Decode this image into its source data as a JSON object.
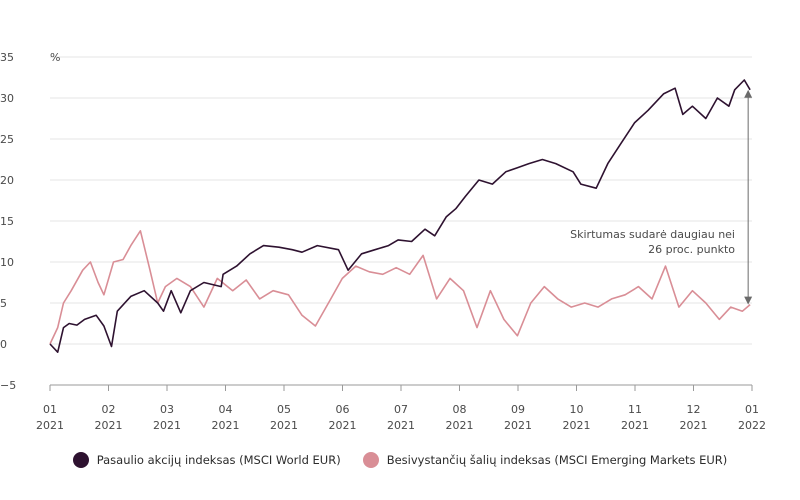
{
  "chart_data": {
    "type": "line",
    "unit_label": "%",
    "ylim": [
      -5,
      35
    ],
    "yticks": [
      "35",
      "30",
      "25",
      "20",
      "15",
      "10",
      "5",
      "0",
      "−5"
    ],
    "ytick_values": [
      35,
      30,
      25,
      20,
      15,
      10,
      5,
      0,
      -5
    ],
    "xlim": [
      "2021-01",
      "2022-01"
    ],
    "xticks": [
      {
        "month": "01",
        "year": "2021"
      },
      {
        "month": "02",
        "year": "2021"
      },
      {
        "month": "03",
        "year": "2021"
      },
      {
        "month": "04",
        "year": "2021"
      },
      {
        "month": "05",
        "year": "2021"
      },
      {
        "month": "06",
        "year": "2021"
      },
      {
        "month": "07",
        "year": "2021"
      },
      {
        "month": "08",
        "year": "2021"
      },
      {
        "month": "09",
        "year": "2021"
      },
      {
        "month": "10",
        "year": "2021"
      },
      {
        "month": "11",
        "year": "2021"
      },
      {
        "month": "12",
        "year": "2021"
      },
      {
        "month": "01",
        "year": "2022"
      }
    ],
    "grid": "horizontal",
    "legend_position": "bottom",
    "annotation": {
      "line1": "Skirtumas sudarė daugiau nei",
      "line2": "26 proc. punkto",
      "at": "2021-12-30",
      "from": 4.8,
      "to": 31.0
    },
    "series": [
      {
        "name": "Pasaulio akcijų indeksas (MSCI World EUR)",
        "color": "#2e1230",
        "x": [
          "2021-01-01",
          "2021-01-05",
          "2021-01-08",
          "2021-01-11",
          "2021-01-15",
          "2021-01-19",
          "2021-01-25",
          "2021-01-29",
          "2021-02-02",
          "2021-02-05",
          "2021-02-12",
          "2021-02-19",
          "2021-02-26",
          "2021-03-01",
          "2021-03-05",
          "2021-03-10",
          "2021-03-15",
          "2021-03-22",
          "2021-03-31",
          "2021-04-01",
          "2021-04-08",
          "2021-04-15",
          "2021-04-22",
          "2021-04-30",
          "2021-05-07",
          "2021-05-12",
          "2021-05-20",
          "2021-05-31",
          "2021-06-05",
          "2021-06-12",
          "2021-06-19",
          "2021-06-26",
          "2021-07-01",
          "2021-07-08",
          "2021-07-15",
          "2021-07-20",
          "2021-07-26",
          "2021-07-31",
          "2021-08-05",
          "2021-08-12",
          "2021-08-19",
          "2021-08-26",
          "2021-09-01",
          "2021-09-07",
          "2021-09-14",
          "2021-09-21",
          "2021-09-30",
          "2021-10-04",
          "2021-10-12",
          "2021-10-18",
          "2021-10-25",
          "2021-11-01",
          "2021-11-08",
          "2021-11-16",
          "2021-11-22",
          "2021-11-26",
          "2021-12-01",
          "2021-12-08",
          "2021-12-14",
          "2021-12-20",
          "2021-12-23",
          "2021-12-28",
          "2021-12-31"
        ],
        "y": [
          0.0,
          -1.0,
          2.0,
          2.5,
          2.3,
          3.0,
          3.5,
          2.2,
          -0.3,
          4.0,
          5.8,
          6.5,
          5.0,
          4.0,
          6.5,
          3.8,
          6.5,
          7.5,
          7.0,
          8.5,
          9.5,
          11.0,
          12.0,
          11.8,
          11.5,
          11.2,
          12.0,
          11.5,
          9.0,
          11.0,
          11.5,
          12.0,
          12.7,
          12.5,
          14.0,
          13.2,
          15.5,
          16.5,
          18.0,
          20.0,
          19.5,
          21.0,
          21.5,
          22.0,
          22.5,
          22.0,
          21.0,
          19.5,
          19.0,
          22.0,
          24.5,
          27.0,
          28.5,
          30.5,
          31.2,
          28.0,
          29.0,
          27.5,
          30.0,
          29.0,
          31.0,
          32.2,
          31.0
        ]
      },
      {
        "name": "Besivystančių šalių indeksas (MSCI Emerging Markets EUR)",
        "color": "#d98e96",
        "x": [
          "2021-01-01",
          "2021-01-05",
          "2021-01-08",
          "2021-01-12",
          "2021-01-18",
          "2021-01-22",
          "2021-01-26",
          "2021-01-29",
          "2021-02-03",
          "2021-02-08",
          "2021-02-12",
          "2021-02-17",
          "2021-02-22",
          "2021-02-26",
          "2021-03-02",
          "2021-03-08",
          "2021-03-15",
          "2021-03-22",
          "2021-03-29",
          "2021-04-06",
          "2021-04-13",
          "2021-04-20",
          "2021-04-27",
          "2021-05-05",
          "2021-05-12",
          "2021-05-19",
          "2021-05-27",
          "2021-06-02",
          "2021-06-09",
          "2021-06-16",
          "2021-06-23",
          "2021-06-30",
          "2021-07-07",
          "2021-07-14",
          "2021-07-21",
          "2021-07-28",
          "2021-08-04",
          "2021-08-11",
          "2021-08-18",
          "2021-08-25",
          "2021-09-01",
          "2021-09-08",
          "2021-09-15",
          "2021-09-22",
          "2021-09-29",
          "2021-10-06",
          "2021-10-13",
          "2021-10-20",
          "2021-10-27",
          "2021-11-03",
          "2021-11-10",
          "2021-11-17",
          "2021-11-24",
          "2021-12-01",
          "2021-12-08",
          "2021-12-15",
          "2021-12-21",
          "2021-12-27",
          "2021-12-31"
        ],
        "y": [
          0.0,
          2.0,
          5.0,
          6.5,
          9.0,
          10.0,
          7.5,
          6.0,
          10.0,
          10.3,
          12.0,
          13.8,
          9.0,
          5.0,
          7.0,
          8.0,
          7.0,
          4.5,
          8.0,
          6.5,
          7.8,
          5.5,
          6.5,
          6.0,
          3.5,
          2.2,
          5.5,
          8.0,
          9.5,
          8.8,
          8.5,
          9.3,
          8.5,
          10.8,
          5.5,
          8.0,
          6.5,
          2.0,
          6.5,
          3.0,
          1.0,
          5.0,
          7.0,
          5.5,
          4.5,
          5.0,
          4.5,
          5.5,
          6.0,
          7.0,
          5.5,
          9.5,
          4.5,
          6.5,
          5.0,
          3.0,
          4.5,
          4.0,
          4.8
        ]
      }
    ]
  }
}
